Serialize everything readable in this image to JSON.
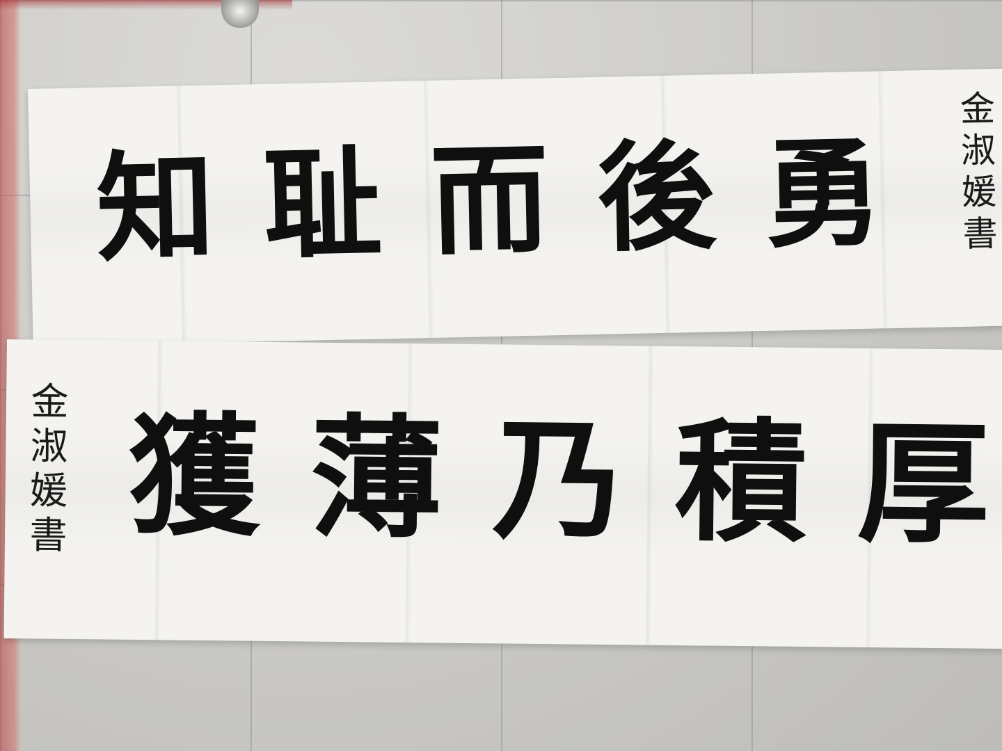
{
  "scroll_top": {
    "chars": [
      "知",
      "耻",
      "而",
      "後",
      "勇"
    ],
    "signature": "金淑媛書"
  },
  "scroll_bottom": {
    "chars": [
      "獲",
      "薄",
      "乃",
      "積",
      "厚"
    ],
    "signature": "金淑媛書"
  },
  "colors": {
    "ink": "#0f0f0f",
    "paper": "#f4f3ef",
    "floor": "#cfcecb"
  }
}
